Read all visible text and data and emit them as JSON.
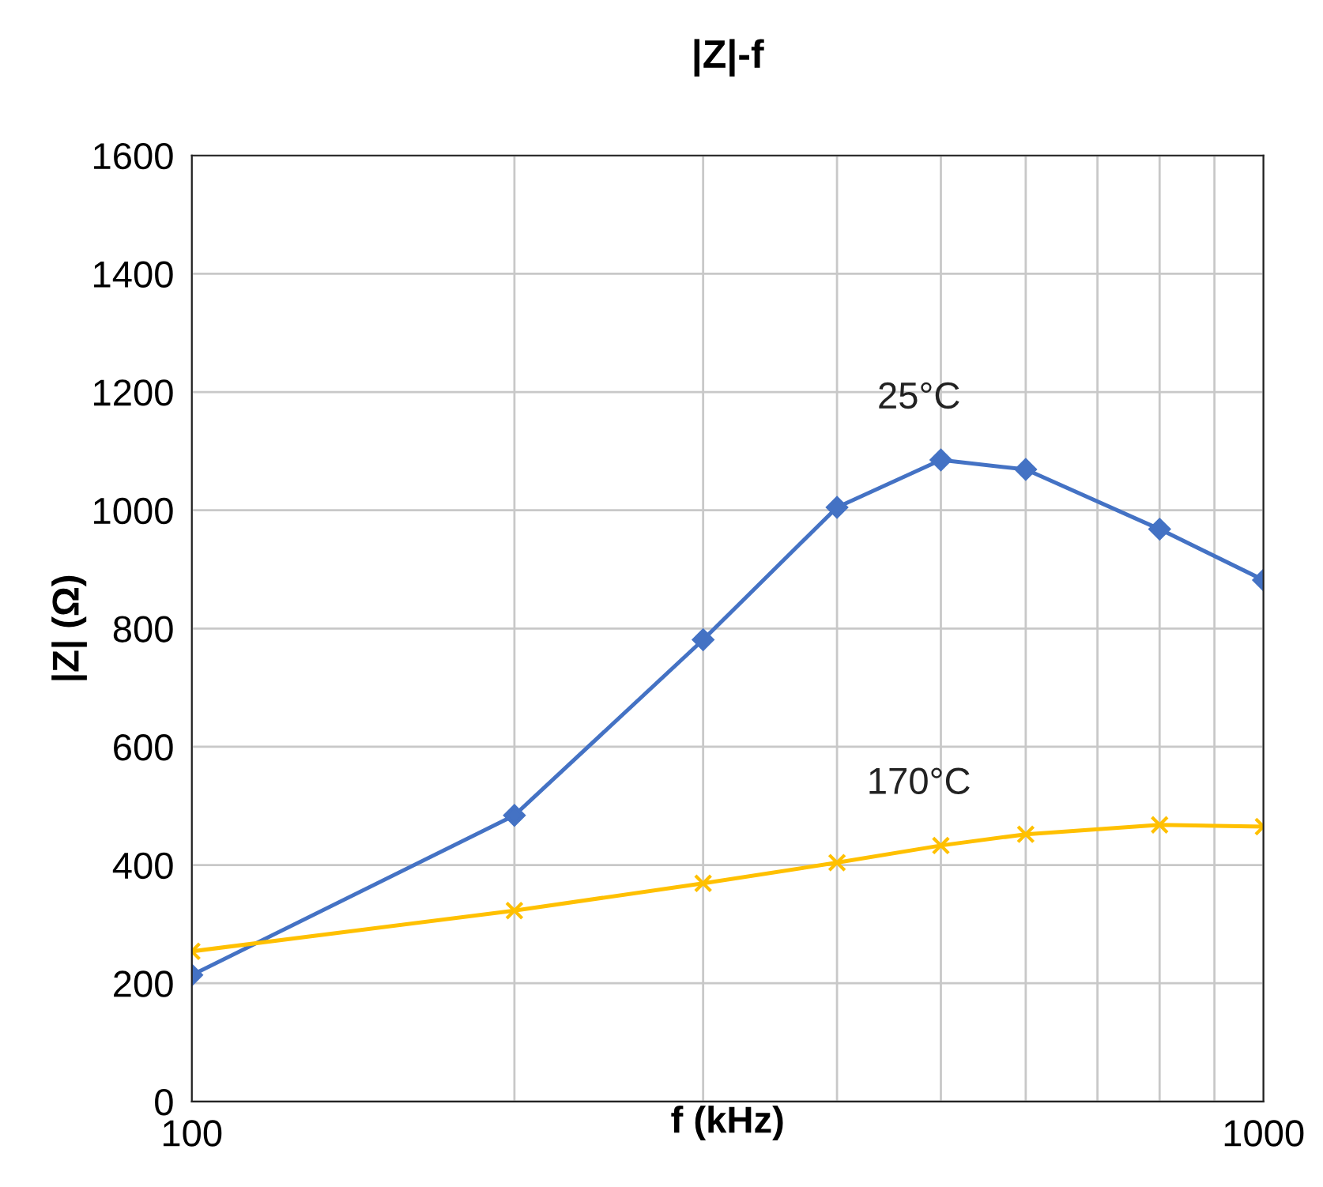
{
  "chart_data": {
    "type": "line",
    "title": "|Z|-f",
    "xlabel": "f (kHz)",
    "ylabel": "|Z| (Ω)",
    "log": "x",
    "x": [
      100,
      200,
      300,
      400,
      500,
      600,
      800,
      1000
    ],
    "series": [
      {
        "name": "25°C",
        "color": "#4472c4",
        "marker": "diamond",
        "values": [
          214,
          484,
          781,
          1005,
          1085,
          1069,
          968,
          882
        ]
      },
      {
        "name": "170°C",
        "color": "#ffc000",
        "marker": "cross",
        "values": [
          254,
          323,
          369,
          404,
          433,
          452,
          468,
          465
        ]
      }
    ],
    "xlim": [
      100,
      1000
    ],
    "xticks": [
      100,
      {
        "value": 200,
        "label": null
      },
      {
        "value": 300,
        "label": null
      },
      {
        "value": 400,
        "label": null
      },
      {
        "value": 500,
        "label": null
      },
      {
        "value": 600,
        "label": null
      },
      {
        "value": 700,
        "label": null
      },
      {
        "value": 800,
        "label": null
      },
      {
        "value": 900,
        "label": null
      },
      1000
    ],
    "ylim": [
      0,
      1600
    ],
    "yticks": [
      0,
      200,
      400,
      600,
      800,
      1000,
      1200,
      1400,
      1600
    ],
    "grid": true,
    "legend": false
  }
}
